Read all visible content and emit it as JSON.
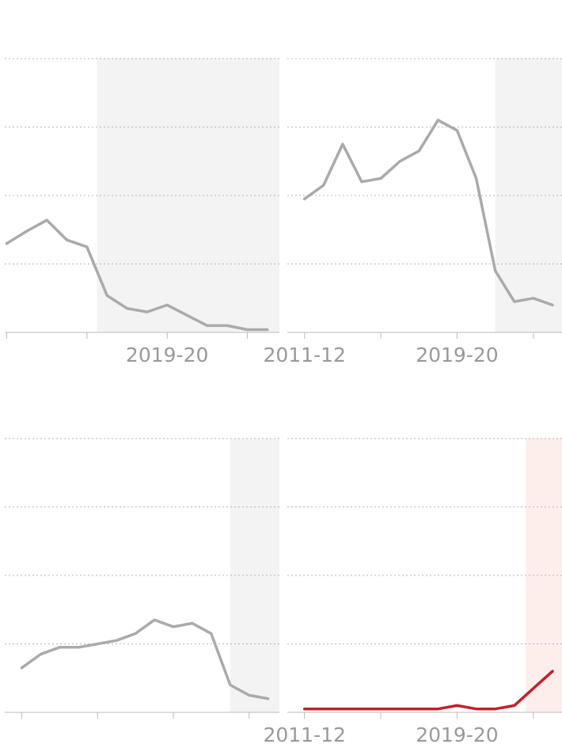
{
  "chart_data": [
    {
      "type": "line",
      "series_color": "#aaaaaa",
      "shade_color": "#f3f3f3",
      "shade_x": [
        2015.5,
        2025
      ],
      "x": [
        2011,
        2012,
        2013,
        2014,
        2015,
        2016,
        2017,
        2018,
        2019,
        2020,
        2021,
        2022,
        2023,
        2024
      ],
      "values": [
        1.3,
        1.48,
        1.64,
        1.35,
        1.25,
        0.54,
        0.35,
        0.3,
        0.4,
        0.25,
        0.1,
        0.1,
        0.04,
        0.04
      ],
      "xlim": [
        2010.9,
        2024.6
      ],
      "ylim": [
        0,
        4
      ],
      "x_ticks": [
        2011,
        2015,
        2019,
        2023
      ],
      "x_tick_labels": [
        {
          "x": 2019,
          "label": "2019-20"
        }
      ],
      "grid": true
    },
    {
      "type": "line",
      "series_color": "#aaaaaa",
      "shade_color": "#f3f3f3",
      "shade_x": [
        2021,
        2024.5
      ],
      "x": [
        2011,
        2012,
        2013,
        2014,
        2015,
        2016,
        2017,
        2018,
        2019,
        2020,
        2021,
        2022,
        2023,
        2024
      ],
      "values": [
        1.95,
        2.15,
        2.75,
        2.2,
        2.25,
        2.5,
        2.65,
        3.1,
        2.95,
        2.25,
        0.9,
        0.45,
        0.5,
        0.4
      ],
      "xlim": [
        2010.1,
        2024.5
      ],
      "ylim": [
        0,
        4
      ],
      "x_ticks": [
        2011,
        2015,
        2019,
        2023
      ],
      "x_tick_labels": [
        {
          "x": 2011,
          "label": "2011-12"
        },
        {
          "x": 2019,
          "label": "2019-20"
        }
      ],
      "grid": true
    },
    {
      "type": "line",
      "series_color": "#aaaaaa",
      "shade_color": "#f3f3f3",
      "shade_x": [
        2022,
        2025
      ],
      "x": [
        2011,
        2012,
        2013,
        2014,
        2015,
        2016,
        2017,
        2018,
        2019,
        2020,
        2021,
        2022,
        2023,
        2024
      ],
      "values": [
        0.65,
        0.85,
        0.95,
        0.95,
        1.0,
        1.05,
        1.15,
        1.35,
        1.25,
        1.3,
        1.15,
        0.4,
        0.25,
        0.2
      ],
      "xlim": [
        2010.1,
        2024.6
      ],
      "ylim": [
        0,
        4
      ],
      "x_ticks": [
        2011,
        2015,
        2019,
        2023
      ],
      "x_tick_labels": [],
      "grid": true
    },
    {
      "type": "line",
      "series_color": "#c41f2b",
      "shade_color": "#fdeeeb",
      "shade_x": [
        2022.6,
        2024.5
      ],
      "x": [
        2011,
        2012,
        2013,
        2014,
        2015,
        2016,
        2017,
        2018,
        2019,
        2020,
        2021,
        2022,
        2023,
        2024
      ],
      "values": [
        0.05,
        0.05,
        0.05,
        0.05,
        0.05,
        0.05,
        0.05,
        0.05,
        0.1,
        0.05,
        0.05,
        0.1,
        0.35,
        0.6
      ],
      "xlim": [
        2010.1,
        2024.5
      ],
      "ylim": [
        0,
        4
      ],
      "x_ticks": [
        2011,
        2015,
        2019,
        2023
      ],
      "x_tick_labels": [
        {
          "x": 2011,
          "label": "2011-12"
        },
        {
          "x": 2019,
          "label": "2019-20"
        }
      ],
      "grid": true
    }
  ]
}
